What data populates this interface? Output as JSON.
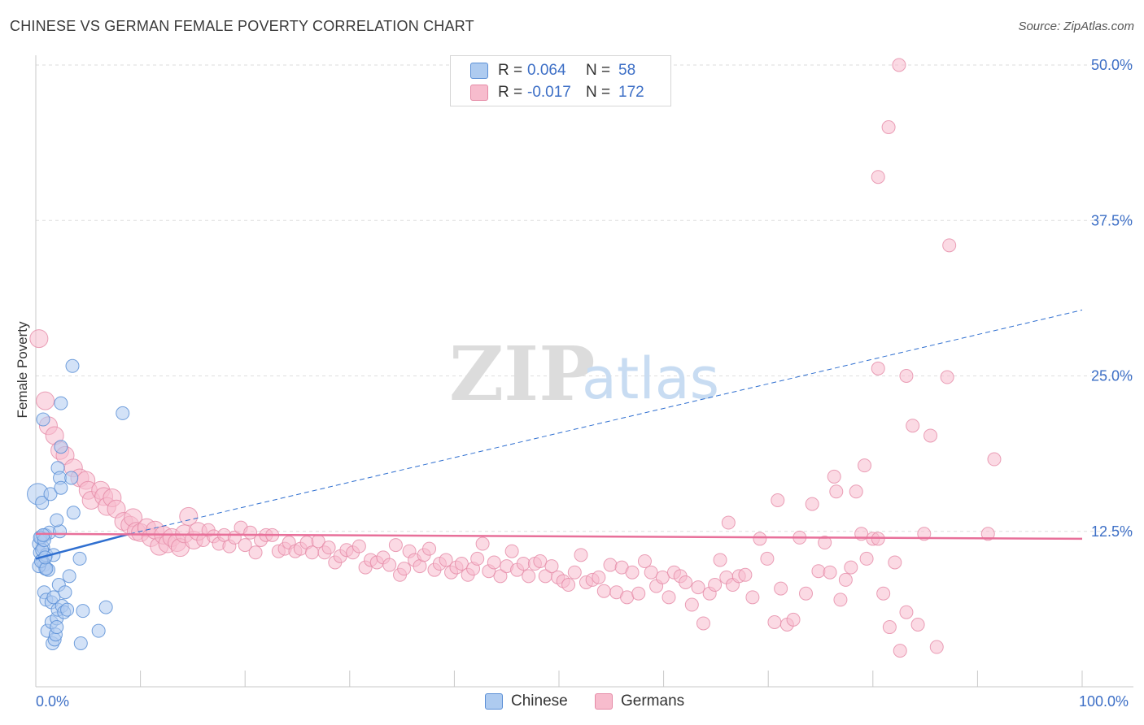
{
  "title": "CHINESE VS GERMAN FEMALE POVERTY CORRELATION CHART",
  "source": "Source: ZipAtlas.com",
  "watermark": {
    "zip": "ZIP",
    "atlas": "atlas"
  },
  "colors": {
    "chinese_fill": "#aecbf0",
    "chinese_stroke": "#5b8fd6",
    "chinese_line": "#2f6fd0",
    "german_fill": "#f7bccd",
    "german_stroke": "#e58aa6",
    "german_line": "#e8709a",
    "tick_label": "#3d6fc6"
  },
  "legend": {
    "chinese": {
      "r_label": "R =",
      "r_value": "0.064",
      "n_label": "N =",
      "n_value": "58"
    },
    "germans": {
      "r_label": "R =",
      "r_value": "-0.017",
      "n_label": "N =",
      "n_value": "172"
    }
  },
  "chart_data": {
    "type": "scatter",
    "title": "CHINESE VS GERMAN FEMALE POVERTY CORRELATION CHART",
    "xlabel": "",
    "ylabel": "Female Poverty",
    "xlim": [
      0,
      100
    ],
    "ylim": [
      0,
      50
    ],
    "x_tick_labels": [
      "0.0%",
      "100.0%"
    ],
    "y_tick_labels": [
      "12.5%",
      "25.0%",
      "37.5%",
      "50.0%"
    ],
    "y_ticks": [
      12.5,
      25.0,
      37.5,
      50.0
    ],
    "grid": true,
    "legend_position": "top-center",
    "series": [
      {
        "name": "Chinese",
        "color": "#aecbf0",
        "points": [
          [
            0.2,
            15.5
          ],
          [
            0.3,
            11.5
          ],
          [
            0.4,
            10.8
          ],
          [
            0.5,
            12.0
          ],
          [
            0.6,
            10.2
          ],
          [
            0.7,
            11.2
          ],
          [
            0.8,
            9.8
          ],
          [
            0.9,
            12.2
          ],
          [
            1.0,
            10.6
          ],
          [
            0.6,
            14.8
          ],
          [
            0.7,
            21.5
          ],
          [
            0.8,
            7.6
          ],
          [
            0.9,
            9.5
          ],
          [
            1.0,
            7.0
          ],
          [
            1.1,
            4.5
          ],
          [
            1.2,
            9.4
          ],
          [
            1.3,
            12.4
          ],
          [
            1.4,
            15.5
          ],
          [
            1.5,
            6.8
          ],
          [
            1.6,
            3.5
          ],
          [
            1.5,
            5.2
          ],
          [
            1.7,
            7.2
          ],
          [
            1.8,
            3.8
          ],
          [
            1.9,
            4.2
          ],
          [
            1.7,
            10.6
          ],
          [
            2.0,
            5.5
          ],
          [
            2.1,
            6.2
          ],
          [
            2.2,
            8.2
          ],
          [
            2.0,
            4.8
          ],
          [
            2.3,
            12.5
          ],
          [
            2.0,
            13.4
          ],
          [
            2.1,
            17.6
          ],
          [
            2.3,
            16.8
          ],
          [
            2.4,
            16.0
          ],
          [
            2.4,
            22.8
          ],
          [
            2.4,
            19.3
          ],
          [
            2.5,
            6.5
          ],
          [
            2.8,
            7.6
          ],
          [
            2.7,
            6.0
          ],
          [
            3.0,
            6.2
          ],
          [
            3.2,
            8.9
          ],
          [
            3.4,
            16.8
          ],
          [
            3.5,
            25.8
          ],
          [
            3.6,
            14.0
          ],
          [
            4.2,
            10.3
          ],
          [
            4.5,
            6.1
          ],
          [
            4.3,
            3.5
          ],
          [
            6.0,
            4.5
          ],
          [
            6.7,
            6.4
          ],
          [
            8.3,
            22.0
          ],
          [
            0.3,
            9.7
          ],
          [
            0.4,
            12.0
          ],
          [
            0.5,
            10.1
          ],
          [
            0.6,
            11.0
          ],
          [
            0.8,
            11.8
          ],
          [
            1.0,
            9.5
          ],
          [
            0.9,
            10.4
          ],
          [
            0.7,
            12.2
          ]
        ]
      },
      {
        "name": "Germans",
        "color": "#f7bccd",
        "points": [
          [
            0.3,
            28.0
          ],
          [
            0.9,
            23.0
          ],
          [
            1.2,
            21.0
          ],
          [
            1.8,
            20.2
          ],
          [
            2.3,
            19.0
          ],
          [
            2.8,
            18.6
          ],
          [
            3.6,
            17.6
          ],
          [
            4.2,
            16.8
          ],
          [
            4.8,
            16.6
          ],
          [
            5.0,
            15.8
          ],
          [
            5.3,
            15.0
          ],
          [
            6.2,
            15.8
          ],
          [
            6.5,
            15.3
          ],
          [
            6.8,
            14.5
          ],
          [
            7.3,
            15.2
          ],
          [
            7.7,
            14.3
          ],
          [
            8.4,
            13.3
          ],
          [
            9.0,
            13.0
          ],
          [
            9.3,
            13.6
          ],
          [
            9.6,
            12.5
          ],
          [
            10.0,
            12.4
          ],
          [
            10.6,
            12.8
          ],
          [
            11.0,
            12.0
          ],
          [
            11.4,
            12.6
          ],
          [
            11.8,
            11.3
          ],
          [
            12.2,
            12.2
          ],
          [
            12.6,
            11.5
          ],
          [
            13.0,
            12.0
          ],
          [
            13.5,
            11.6
          ],
          [
            13.8,
            11.2
          ],
          [
            14.2,
            12.3
          ],
          [
            14.6,
            13.7
          ],
          [
            15.1,
            11.8
          ],
          [
            15.5,
            12.5
          ],
          [
            16.0,
            11.8
          ],
          [
            16.5,
            12.6
          ],
          [
            17.0,
            12.1
          ],
          [
            17.5,
            11.5
          ],
          [
            18.0,
            12.2
          ],
          [
            18.5,
            11.3
          ],
          [
            19.0,
            12.0
          ],
          [
            19.6,
            12.8
          ],
          [
            20.0,
            11.4
          ],
          [
            20.5,
            12.4
          ],
          [
            21.0,
            10.8
          ],
          [
            21.5,
            11.8
          ],
          [
            22.0,
            12.2
          ],
          [
            22.6,
            12.2
          ],
          [
            23.2,
            10.9
          ],
          [
            23.8,
            11.1
          ],
          [
            24.2,
            11.6
          ],
          [
            24.8,
            10.9
          ],
          [
            25.3,
            11.1
          ],
          [
            25.9,
            11.6
          ],
          [
            26.4,
            10.8
          ],
          [
            27.0,
            11.7
          ],
          [
            27.6,
            10.8
          ],
          [
            28.0,
            11.2
          ],
          [
            28.6,
            10.0
          ],
          [
            29.1,
            10.5
          ],
          [
            29.7,
            11.0
          ],
          [
            30.3,
            10.8
          ],
          [
            30.9,
            11.3
          ],
          [
            31.5,
            9.6
          ],
          [
            32.0,
            10.2
          ],
          [
            32.6,
            10.0
          ],
          [
            33.2,
            10.4
          ],
          [
            33.8,
            9.8
          ],
          [
            34.4,
            11.4
          ],
          [
            34.8,
            9.0
          ],
          [
            35.2,
            9.5
          ],
          [
            35.7,
            10.9
          ],
          [
            36.2,
            10.2
          ],
          [
            36.7,
            9.7
          ],
          [
            37.1,
            10.6
          ],
          [
            37.6,
            11.1
          ],
          [
            38.1,
            9.4
          ],
          [
            38.6,
            9.9
          ],
          [
            39.2,
            10.2
          ],
          [
            39.7,
            9.2
          ],
          [
            40.2,
            9.6
          ],
          [
            40.7,
            9.9
          ],
          [
            41.3,
            9.0
          ],
          [
            41.8,
            9.5
          ],
          [
            42.2,
            10.3
          ],
          [
            42.7,
            11.5
          ],
          [
            43.3,
            9.3
          ],
          [
            43.8,
            10.0
          ],
          [
            44.4,
            8.9
          ],
          [
            45.0,
            9.7
          ],
          [
            45.5,
            10.9
          ],
          [
            46.0,
            9.4
          ],
          [
            46.6,
            9.9
          ],
          [
            47.1,
            8.9
          ],
          [
            47.7,
            9.9
          ],
          [
            48.2,
            10.1
          ],
          [
            48.7,
            8.9
          ],
          [
            49.3,
            9.7
          ],
          [
            49.9,
            8.8
          ],
          [
            50.4,
            8.5
          ],
          [
            50.9,
            8.2
          ],
          [
            51.5,
            9.2
          ],
          [
            52.1,
            10.6
          ],
          [
            52.6,
            8.4
          ],
          [
            53.2,
            8.6
          ],
          [
            53.8,
            8.8
          ],
          [
            54.3,
            7.7
          ],
          [
            54.9,
            9.8
          ],
          [
            55.5,
            7.6
          ],
          [
            56.0,
            9.6
          ],
          [
            56.5,
            7.2
          ],
          [
            57.0,
            9.2
          ],
          [
            57.6,
            7.5
          ],
          [
            58.2,
            10.1
          ],
          [
            58.8,
            9.2
          ],
          [
            59.3,
            8.1
          ],
          [
            59.9,
            8.8
          ],
          [
            60.5,
            7.2
          ],
          [
            61.0,
            9.2
          ],
          [
            61.6,
            8.9
          ],
          [
            62.1,
            8.4
          ],
          [
            62.7,
            6.6
          ],
          [
            63.3,
            8.0
          ],
          [
            63.8,
            5.1
          ],
          [
            64.4,
            7.5
          ],
          [
            64.9,
            8.2
          ],
          [
            65.4,
            10.2
          ],
          [
            66.0,
            8.8
          ],
          [
            66.6,
            8.2
          ],
          [
            67.2,
            8.9
          ],
          [
            67.8,
            9.0
          ],
          [
            68.5,
            7.2
          ],
          [
            69.2,
            11.9
          ],
          [
            69.9,
            10.3
          ],
          [
            70.6,
            5.2
          ],
          [
            71.2,
            7.9
          ],
          [
            71.8,
            5.0
          ],
          [
            72.4,
            5.4
          ],
          [
            73.0,
            12.0
          ],
          [
            73.6,
            7.5
          ],
          [
            74.2,
            14.7
          ],
          [
            74.8,
            9.3
          ],
          [
            75.4,
            11.6
          ],
          [
            75.9,
            9.2
          ],
          [
            76.5,
            15.7
          ],
          [
            76.9,
            7.0
          ],
          [
            77.4,
            8.6
          ],
          [
            77.9,
            9.6
          ],
          [
            78.4,
            15.7
          ],
          [
            78.9,
            12.3
          ],
          [
            79.4,
            10.3
          ],
          [
            80.0,
            11.9
          ],
          [
            80.5,
            11.9
          ],
          [
            81.0,
            7.5
          ],
          [
            81.6,
            4.8
          ],
          [
            82.1,
            10.0
          ],
          [
            82.6,
            2.9
          ],
          [
            83.2,
            6.0
          ],
          [
            83.8,
            21.0
          ],
          [
            84.3,
            5.0
          ],
          [
            84.9,
            12.3
          ],
          [
            85.5,
            20.2
          ],
          [
            86.1,
            3.2
          ],
          [
            87.1,
            24.9
          ],
          [
            87.3,
            35.5
          ],
          [
            91.0,
            12.3
          ],
          [
            91.6,
            18.3
          ],
          [
            80.5,
            25.6
          ],
          [
            83.2,
            25.0
          ],
          [
            79.2,
            17.8
          ],
          [
            80.5,
            41.0
          ],
          [
            81.5,
            45.0
          ],
          [
            82.5,
            50.0
          ],
          [
            76.3,
            16.9
          ],
          [
            70.9,
            15.0
          ],
          [
            66.2,
            13.2
          ]
        ]
      }
    ],
    "trend_lines": [
      {
        "series": "Chinese",
        "solid_from": [
          0,
          10.3
        ],
        "solid_to": [
          9.0,
          12.3
        ],
        "dashed_to": [
          100,
          30.3
        ]
      },
      {
        "series": "Germans",
        "from": [
          0,
          12.3
        ],
        "to": [
          100,
          11.9
        ]
      }
    ]
  }
}
